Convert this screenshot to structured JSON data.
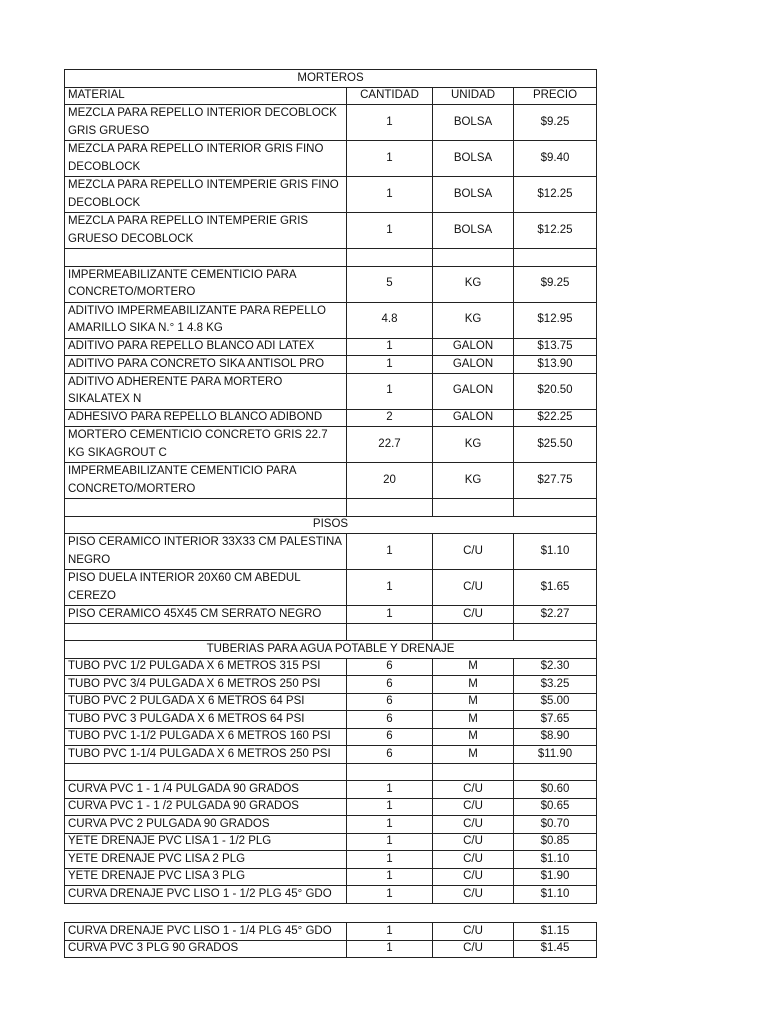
{
  "table1": {
    "rows": [
      {
        "type": "title",
        "text": "MORTEROS"
      },
      {
        "type": "row",
        "cells": [
          "MATERIAL",
          "CANTIDAD",
          "UNIDAD",
          "PRECIO"
        ]
      },
      {
        "type": "row2",
        "cells": [
          "MEZCLA PARA REPELLO INTERIOR DECOBLOCK GRIS GRUESO",
          "1",
          "BOLSA",
          "$9.25"
        ]
      },
      {
        "type": "row2",
        "cells": [
          "MEZCLA PARA REPELLO INTERIOR GRIS FINO DECOBLOCK",
          "1",
          "BOLSA",
          "$9.40"
        ]
      },
      {
        "type": "row2",
        "cells": [
          "MEZCLA PARA REPELLO INTEMPERIE GRIS FINO DECOBLOCK",
          "1",
          "BOLSA",
          "$12.25"
        ]
      },
      {
        "type": "row2",
        "cells": [
          "MEZCLA PARA REPELLO INTEMPERIE GRIS GRUESO DECOBLOCK",
          "1",
          "BOLSA",
          "$12.25"
        ]
      },
      {
        "type": "row",
        "cells": [
          "",
          "",
          "",
          ""
        ]
      },
      {
        "type": "row2",
        "cells": [
          "IMPERMEABILIZANTE CEMENTICIO PARA CONCRETO/MORTERO",
          "5",
          "KG",
          "$9.25"
        ]
      },
      {
        "type": "row2",
        "cells": [
          "ADITIVO IMPERMEABILIZANTE PARA REPELLO AMARILLO SIKA N.° 1 4.8 KG",
          "4.8",
          "KG",
          "$12.95"
        ]
      },
      {
        "type": "row",
        "cells": [
          "ADITIVO PARA REPELLO BLANCO ADI LATEX",
          "1",
          "GALON",
          "$13.75"
        ]
      },
      {
        "type": "row",
        "cells": [
          "ADITIVO PARA CONCRETO SIKA ANTISOL PRO",
          "1",
          "GALON",
          "$13.90"
        ]
      },
      {
        "type": "row2",
        "cells": [
          "ADITIVO ADHERENTE PARA MORTERO SIKALATEX N",
          "1",
          "GALON",
          "$20.50"
        ]
      },
      {
        "type": "row",
        "cells": [
          "ADHESIVO PARA REPELLO BLANCO ADIBOND",
          "2",
          "GALON",
          "$22.25"
        ]
      },
      {
        "type": "row2",
        "cells": [
          "MORTERO CEMENTICIO CONCRETO GRIS 22.7 KG SIKAGROUT C",
          "22.7",
          "KG",
          "$25.50"
        ]
      },
      {
        "type": "row2",
        "cells": [
          "IMPERMEABILIZANTE CEMENTICIO PARA CONCRETO/MORTERO",
          "20",
          "KG",
          "$27.75"
        ]
      },
      {
        "type": "row",
        "cells": [
          "",
          "",
          "",
          ""
        ]
      },
      {
        "type": "title",
        "text": "PISOS"
      },
      {
        "type": "row2",
        "cells": [
          "PISO CERAMICO INTERIOR 33X33 CM PALESTINA NEGRO",
          "1",
          "C/U",
          "$1.10"
        ]
      },
      {
        "type": "row2",
        "cells": [
          "PISO DUELA INTERIOR 20X60 CM ABEDUL CEREZO",
          "1",
          "C/U",
          "$1.65"
        ]
      },
      {
        "type": "row",
        "cells": [
          "PISO CERAMICO 45X45 CM SERRATO NEGRO",
          "1",
          "C/U",
          "$2.27"
        ]
      },
      {
        "type": "row",
        "cells": [
          "",
          "",
          "",
          ""
        ]
      },
      {
        "type": "title",
        "text": "TUBERIAS PARA AGUA POTABLE Y DRENAJE"
      },
      {
        "type": "row",
        "cells": [
          "TUBO PVC 1/2 PULGADA X 6 METROS 315 PSI",
          "6",
          "M",
          "$2.30"
        ]
      },
      {
        "type": "row",
        "cells": [
          "TUBO PVC 3/4 PULGADA X 6 METROS 250 PSI",
          "6",
          "M",
          "$3.25"
        ]
      },
      {
        "type": "row",
        "cells": [
          "TUBO PVC 2 PULGADA X 6 METROS 64 PSI",
          "6",
          "M",
          "$5.00"
        ]
      },
      {
        "type": "row",
        "cells": [
          "TUBO PVC 3 PULGADA X 6 METROS 64 PSI",
          "6",
          "M",
          "$7.65"
        ]
      },
      {
        "type": "row",
        "cells": [
          "TUBO PVC 1-1/2 PULGADA X 6 METROS 160 PSI",
          "6",
          "M",
          "$8.90"
        ]
      },
      {
        "type": "row",
        "cells": [
          "TUBO PVC 1-1/4 PULGADA X 6 METROS 250 PSI",
          "6",
          "M",
          "$11.90"
        ]
      },
      {
        "type": "row",
        "cells": [
          "",
          "",
          "",
          ""
        ]
      },
      {
        "type": "row",
        "cells": [
          "CURVA PVC 1 - 1 /4 PULGADA 90 GRADOS",
          "1",
          "C/U",
          "$0.60"
        ]
      },
      {
        "type": "row",
        "cells": [
          "CURVA PVC 1 - 1 /2 PULGADA 90 GRADOS",
          "1",
          "C/U",
          "$0.65"
        ]
      },
      {
        "type": "row",
        "cells": [
          "CURVA PVC 2 PULGADA 90 GRADOS",
          "1",
          "C/U",
          "$0.70"
        ]
      },
      {
        "type": "row",
        "cells": [
          "YETE DRENAJE PVC LISA 1 - 1/2 PLG",
          "1",
          "C/U",
          "$0.85"
        ]
      },
      {
        "type": "row",
        "cells": [
          "YETE DRENAJE PVC LISA 2 PLG",
          "1",
          "C/U",
          "$1.10"
        ]
      },
      {
        "type": "row",
        "cells": [
          "YETE DRENAJE PVC LISA 3 PLG",
          "1",
          "C/U",
          "$1.90"
        ]
      },
      {
        "type": "row",
        "cells": [
          "CURVA DRENAJE PVC LISO 1 - 1/2 PLG 45° GDO",
          "1",
          "C/U",
          "$1.10"
        ]
      }
    ]
  },
  "table2": {
    "rows": [
      {
        "type": "row",
        "cells": [
          "CURVA DRENAJE PVC LISO 1 - 1/4 PLG 45° GDO",
          "1",
          "C/U",
          "$1.15"
        ]
      },
      {
        "type": "row",
        "cells": [
          "CURVA PVC 3 PLG 90 GRADOS",
          "1",
          "C/U",
          "$1.45"
        ]
      }
    ]
  }
}
